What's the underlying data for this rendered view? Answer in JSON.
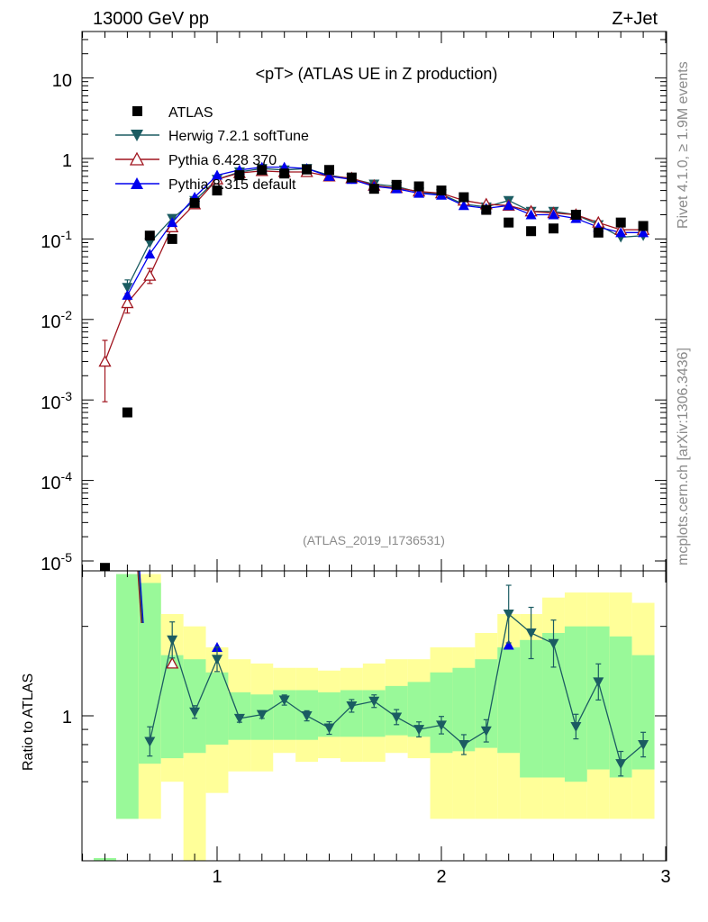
{
  "header": {
    "left": "13000 GeV pp",
    "right": "Z+Jet"
  },
  "side": {
    "rivet": "Rivet 4.1.0, ≥ 1.9M events",
    "mcplots": "mcplots.cern.ch [arXiv:1306.3436]"
  },
  "colors": {
    "atlas": "#000000",
    "herwig": "#1b5c62",
    "pythia6": "#a0141e",
    "pythia8": "#0000ee",
    "band_inner": "#99f999",
    "band_outer": "#ffff99"
  },
  "chart_data": {
    "type": "scatter",
    "title": "<pT> (ATLAS UE in Z production)",
    "analysis_id": "(ATLAS_2019_I1736531)",
    "xlabel": "",
    "ylabel": "",
    "xlim": [
      0.4,
      3.0
    ],
    "ylim": [
      8e-06,
      35
    ],
    "yscale": "log",
    "x_ticks": [
      "1",
      "2",
      "3"
    ],
    "y_ticks": [
      {
        "base": "10",
        "exp": "-5"
      },
      {
        "base": "10",
        "exp": "-4"
      },
      {
        "base": "10",
        "exp": "-3"
      },
      {
        "base": "10",
        "exp": "-2"
      },
      {
        "base": "10",
        "exp": "-1"
      },
      {
        "base": "1",
        "exp": ""
      },
      {
        "base": "10",
        "exp": ""
      }
    ],
    "legend": [
      "ATLAS",
      "Herwig 7.2.1 softTune",
      "Pythia 6.428 370",
      "Pythia 8.315 default"
    ],
    "series": [
      {
        "name": "ATLAS",
        "x": [
          0.5,
          0.6,
          0.7,
          0.8,
          0.9,
          1.0,
          1.1,
          1.2,
          1.3,
          1.4,
          1.5,
          1.6,
          1.7,
          1.8,
          1.9,
          2.0,
          2.1,
          2.2,
          2.3,
          2.4,
          2.5,
          2.6,
          2.7,
          2.8,
          2.9
        ],
        "y": [
          8.2e-06,
          0.0007,
          0.11,
          0.1,
          0.28,
          0.4,
          0.62,
          0.72,
          0.65,
          0.73,
          0.72,
          0.58,
          0.42,
          0.47,
          0.45,
          0.4,
          0.33,
          0.23,
          0.16,
          0.125,
          0.135,
          0.2,
          0.12,
          0.16,
          0.145
        ]
      },
      {
        "name": "Herwig 7.2.1 softTune",
        "x": [
          0.6,
          0.7,
          0.8,
          0.9,
          1.0,
          1.1,
          1.2,
          1.3,
          1.4,
          1.5,
          1.6,
          1.7,
          1.8,
          1.9,
          2.0,
          2.1,
          2.2,
          2.3,
          2.4,
          2.5,
          2.6,
          2.7,
          2.8,
          2.9
        ],
        "y": [
          0.025,
          0.09,
          0.18,
          0.3,
          0.55,
          0.68,
          0.75,
          0.72,
          0.75,
          0.62,
          0.56,
          0.48,
          0.45,
          0.38,
          0.36,
          0.27,
          0.25,
          0.3,
          0.22,
          0.22,
          0.2,
          0.15,
          0.105,
          0.11
        ]
      },
      {
        "name": "Pythia 6.428 370",
        "x": [
          0.5,
          0.6,
          0.7,
          0.8,
          0.9,
          1.0,
          1.1,
          1.2,
          1.3,
          1.4,
          1.5,
          1.6,
          1.7,
          1.8,
          1.9,
          2.0,
          2.1,
          2.2,
          2.3,
          2.4,
          2.5,
          2.6,
          2.7,
          2.8,
          2.9
        ],
        "y": [
          0.003,
          0.016,
          0.035,
          0.14,
          0.27,
          0.55,
          0.66,
          0.7,
          0.68,
          0.68,
          0.6,
          0.57,
          0.46,
          0.43,
          0.39,
          0.37,
          0.3,
          0.27,
          0.26,
          0.22,
          0.21,
          0.2,
          0.16,
          0.13,
          0.13
        ]
      },
      {
        "name": "Pythia 8.315 default",
        "x": [
          0.6,
          0.7,
          0.8,
          0.9,
          1.0,
          1.1,
          1.2,
          1.3,
          1.4,
          1.5,
          1.6,
          1.7,
          1.8,
          1.9,
          2.0,
          2.1,
          2.2,
          2.3,
          2.4,
          2.5,
          2.6,
          2.7,
          2.8,
          2.9
        ],
        "y": [
          0.02,
          0.065,
          0.16,
          0.33,
          0.62,
          0.72,
          0.78,
          0.78,
          0.75,
          0.6,
          0.55,
          0.45,
          0.42,
          0.37,
          0.35,
          0.26,
          0.24,
          0.26,
          0.2,
          0.2,
          0.18,
          0.14,
          0.12,
          0.12
        ]
      }
    ],
    "ratio": {
      "ylabel": "Ratio to ATLAS",
      "y_tick": "1",
      "herwig_x": [
        0.7,
        0.8,
        0.9,
        1.0,
        1.1,
        1.2,
        1.3,
        1.4,
        1.5,
        1.6,
        1.7,
        1.8,
        1.9,
        2.0,
        2.1,
        2.2,
        2.3,
        2.4,
        2.5,
        2.6,
        2.7,
        2.8,
        2.9
      ],
      "herwig_y": [
        0.82,
        1.8,
        1.03,
        1.55,
        0.98,
        1.01,
        1.13,
        1.0,
        0.91,
        1.08,
        1.12,
        0.99,
        0.9,
        0.93,
        0.8,
        0.89,
        2.2,
        1.9,
        1.75,
        0.92,
        1.3,
        0.69,
        0.8
      ]
    }
  }
}
